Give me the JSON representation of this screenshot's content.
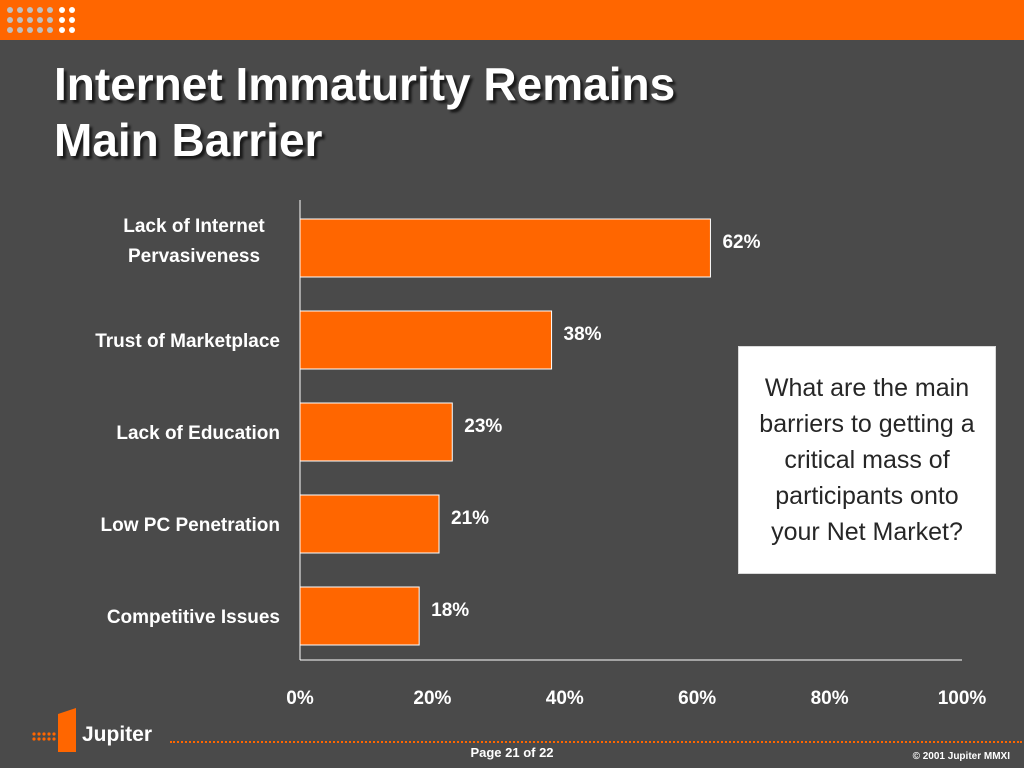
{
  "slide": {
    "title_line1": "Internet Immaturity Remains",
    "title_line2": "Main Barrier",
    "callout": "What are the main barriers to getting a critical mass of participants onto your Net Market?",
    "logo_text": "Jupiter",
    "page": "Page 21 of 22",
    "copyright": "© 2001 Jupiter MMXI"
  },
  "colors": {
    "background": "#4a4a4a",
    "accent": "#ff6600",
    "bar": "#ff6600",
    "bar_border": "#ffffff",
    "text": "#ffffff"
  },
  "chart_data": {
    "type": "bar",
    "orientation": "horizontal",
    "categories": [
      [
        "Lack of Internet",
        "Pervasiveness"
      ],
      [
        "Trust of Marketplace"
      ],
      [
        "Lack of Education"
      ],
      [
        "Low PC Penetration"
      ],
      [
        "Competitive Issues"
      ]
    ],
    "values": [
      62,
      38,
      23,
      21,
      18
    ],
    "data_labels": [
      "62%",
      "38%",
      "23%",
      "21%",
      "18%"
    ],
    "xlim": [
      0,
      100
    ],
    "x_ticks": [
      0,
      20,
      40,
      60,
      80,
      100
    ],
    "x_tick_labels": [
      "0%",
      "20%",
      "40%",
      "60%",
      "80%",
      "100%"
    ],
    "grid": false,
    "legend": "none"
  }
}
